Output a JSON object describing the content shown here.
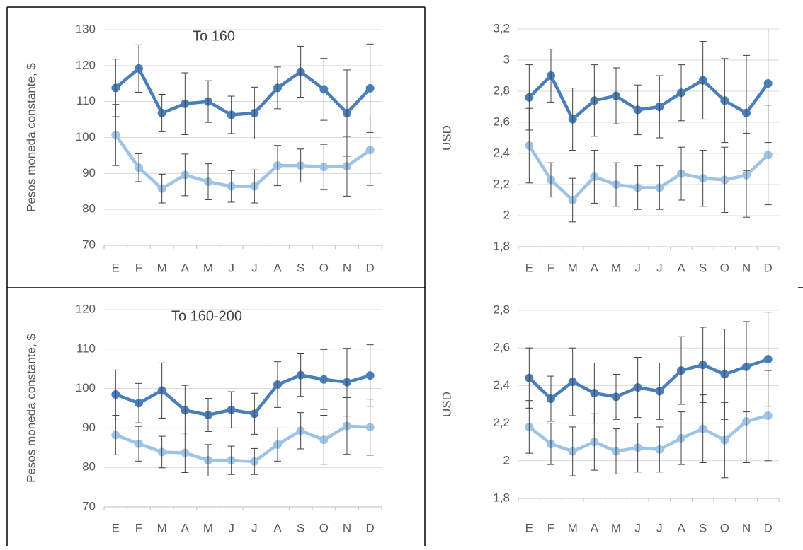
{
  "chart_data": [
    {
      "type": "line",
      "title": "To 160",
      "y_label": "Pesos moneda constante, $",
      "categories": [
        "E",
        "F",
        "M",
        "A",
        "M",
        "J",
        "J",
        "A",
        "S",
        "O",
        "N",
        "D"
      ],
      "ylim": [
        70,
        130
      ],
      "yticks": [
        70,
        80,
        90,
        100,
        110,
        120,
        130
      ],
      "grid": true,
      "series": [
        {
          "color": "#4a7ebb",
          "values": [
            113.8,
            119.2,
            106.8,
            109.4,
            110,
            106.3,
            106.8,
            113.8,
            118.3,
            113.4,
            106.8,
            113.7
          ],
          "errors": [
            8,
            6.6,
            5.2,
            8.6,
            5.8,
            5.2,
            7.2,
            5.8,
            7.1,
            8.6,
            12,
            12.3
          ]
        },
        {
          "color": "#9dc3e6",
          "values": [
            100.7,
            91.6,
            85.8,
            89.6,
            87.7,
            86.4,
            86.4,
            92.2,
            92.2,
            91.8,
            92,
            96.5
          ],
          "errors": [
            8.5,
            3.9,
            4,
            5.8,
            5,
            4.4,
            4.6,
            5.6,
            4.6,
            6.3,
            8.3,
            9.8
          ]
        }
      ]
    },
    {
      "type": "line",
      "y_label": "USD",
      "categories": [
        "E",
        "F",
        "M",
        "A",
        "M",
        "J",
        "J",
        "A",
        "S",
        "O",
        "N",
        "D"
      ],
      "ylim": [
        1.8,
        3.2
      ],
      "yticks": [
        {
          "value": 1.8,
          "label": "1,8"
        },
        2,
        {
          "value": 2.2,
          "label": "2,2"
        },
        {
          "value": 2.4,
          "label": "2,4"
        },
        {
          "value": 2.6,
          "label": "2,6"
        },
        {
          "value": 2.8,
          "label": "2,8"
        },
        3,
        {
          "value": 3.2,
          "label": "3,2"
        }
      ],
      "grid": true,
      "series": [
        {
          "color": "#4a7ebb",
          "values": [
            2.76,
            2.9,
            2.62,
            2.74,
            2.77,
            2.68,
            2.7,
            2.79,
            2.87,
            2.74,
            2.66,
            2.85
          ],
          "errors": [
            0.21,
            0.17,
            0.2,
            0.23,
            0.18,
            0.16,
            0.2,
            0.18,
            0.25,
            0.27,
            0.37,
            0.38
          ]
        },
        {
          "color": "#9dc3e6",
          "values": [
            2.45,
            2.23,
            2.1,
            2.25,
            2.2,
            2.18,
            2.18,
            2.27,
            2.24,
            2.23,
            2.26,
            2.39
          ],
          "errors": [
            0.24,
            0.11,
            0.14,
            0.17,
            0.14,
            0.14,
            0.14,
            0.17,
            0.18,
            0.21,
            0.27,
            0.32
          ]
        }
      ]
    },
    {
      "type": "line",
      "title": "To 160-200",
      "y_label": "Pesos moneda constante, $",
      "categories": [
        "E",
        "F",
        "M",
        "A",
        "M",
        "J",
        "J",
        "A",
        "S",
        "O",
        "N",
        "D"
      ],
      "ylim": [
        70,
        120
      ],
      "yticks": [
        70,
        80,
        90,
        100,
        110,
        120
      ],
      "grid": true,
      "series": [
        {
          "color": "#4a7ebb",
          "values": [
            98.5,
            96.3,
            99.5,
            94.5,
            93.3,
            94.6,
            93.6,
            101,
            103.4,
            102.3,
            101.6,
            103.3
          ],
          "errors": [
            6.2,
            5,
            7,
            6.3,
            4.2,
            4.6,
            5.2,
            5.8,
            5.4,
            7.6,
            8.6,
            7.8
          ]
        },
        {
          "color": "#9dc3e6",
          "values": [
            88.2,
            86,
            83.9,
            83.7,
            81.8,
            81.8,
            81.5,
            85.8,
            89.3,
            87,
            90.5,
            90.2
          ],
          "errors": [
            5,
            4.4,
            4,
            5,
            4,
            3.6,
            3.3,
            4.2,
            4.6,
            6.2,
            7.2,
            7.1
          ]
        }
      ]
    },
    {
      "type": "line",
      "y_label": "USD",
      "categories": [
        "E",
        "F",
        "M",
        "A",
        "M",
        "J",
        "J",
        "A",
        "S",
        "O",
        "N",
        "D"
      ],
      "ylim": [
        1.8,
        2.8
      ],
      "yticks": [
        {
          "value": 1.8,
          "label": "1,8"
        },
        2,
        {
          "value": 2.2,
          "label": "2,2"
        },
        {
          "value": 2.4,
          "label": "2,4"
        },
        {
          "value": 2.6,
          "label": "2,6"
        },
        {
          "value": 2.8,
          "label": "2,8"
        }
      ],
      "grid": true,
      "series": [
        {
          "color": "#4a7ebb",
          "values": [
            2.44,
            2.33,
            2.42,
            2.36,
            2.34,
            2.39,
            2.37,
            2.48,
            2.51,
            2.46,
            2.5,
            2.54
          ],
          "errors": [
            0.16,
            0.12,
            0.18,
            0.16,
            0.12,
            0.16,
            0.15,
            0.18,
            0.2,
            0.24,
            0.24,
            0.25
          ]
        },
        {
          "color": "#9dc3e6",
          "values": [
            2.18,
            2.09,
            2.05,
            2.1,
            2.05,
            2.07,
            2.06,
            2.12,
            2.17,
            2.11,
            2.21,
            2.24
          ],
          "errors": [
            0.14,
            0.11,
            0.13,
            0.15,
            0.12,
            0.13,
            0.12,
            0.14,
            0.18,
            0.2,
            0.22,
            0.24
          ]
        }
      ]
    }
  ]
}
